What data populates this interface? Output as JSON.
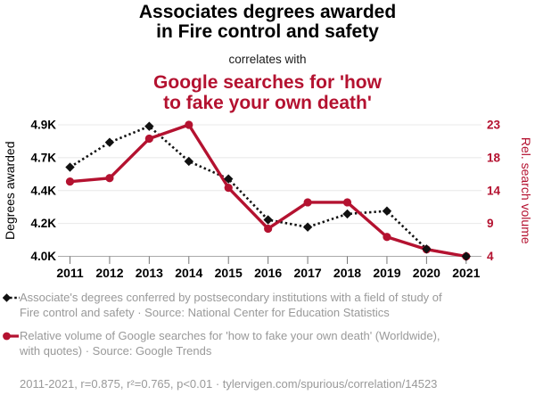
{
  "colors": {
    "accent_red": "#b41230",
    "text_black": "#000000",
    "muted_gray": "#999999",
    "gridline": "#e8e8e8",
    "axis_line": "#aaaaaa",
    "tick_mark": "#777777"
  },
  "header": {
    "title_line1": "Associates degrees awarded",
    "title_line2": "in Fire control and safety",
    "connector": "correlates with",
    "red_title_line1": "Google searches for 'how",
    "red_title_line2": "to fake your own death'"
  },
  "chart_data": {
    "type": "line",
    "x": [
      2011,
      2012,
      2013,
      2014,
      2015,
      2016,
      2017,
      2018,
      2019,
      2020,
      2021
    ],
    "x_tick_labels": [
      "2011",
      "2012",
      "2013",
      "2014",
      "2015",
      "2016",
      "2017",
      "2018",
      "2019",
      "2020",
      "2021"
    ],
    "left_axis": {
      "label": "Degrees awarded",
      "range": [
        4000,
        4900
      ],
      "tick_labels": [
        "4.9K",
        "4.7K",
        "4.4K",
        "4.2K",
        "4.0K"
      ]
    },
    "right_axis": {
      "label": "Rel. search volume",
      "range": [
        4,
        23
      ],
      "tick_labels": [
        "23",
        "18",
        "14",
        "9",
        "4"
      ]
    },
    "grid": true,
    "legend_position": "bottom",
    "series": [
      {
        "name": "Associate's degrees in Fire control and safety",
        "axis": "left",
        "marker": "diamond",
        "line_style": "dotted",
        "color": "#111111",
        "values": [
          4610,
          4780,
          4890,
          4650,
          4530,
          4250,
          4200,
          4290,
          4310,
          4050,
          4000
        ]
      },
      {
        "name": "Google searches for 'how to fake your own death'",
        "axis": "right",
        "marker": "circle",
        "line_style": "solid",
        "color": "#b41230",
        "values": [
          14.8,
          15.3,
          21.0,
          23.0,
          13.9,
          8.0,
          11.8,
          11.8,
          6.8,
          5.0,
          4.0
        ]
      }
    ]
  },
  "legend": {
    "items": [
      {
        "icon": "black-diamond-dotted-line",
        "text": "Associate's degrees conferred by postsecondary institutions with a field of study of Fire control and safety · Source: National Center for Education Statistics"
      },
      {
        "icon": "red-circle-solid-line",
        "text": "Relative volume of Google searches for 'how to fake your own death' (Worldwide), with quotes) · Source: Google Trends"
      }
    ]
  },
  "footer": {
    "text": "2011-2021, r=0.875, r²=0.765, p<0.01 · tylervigen.com/spurious/correlation/14523"
  }
}
